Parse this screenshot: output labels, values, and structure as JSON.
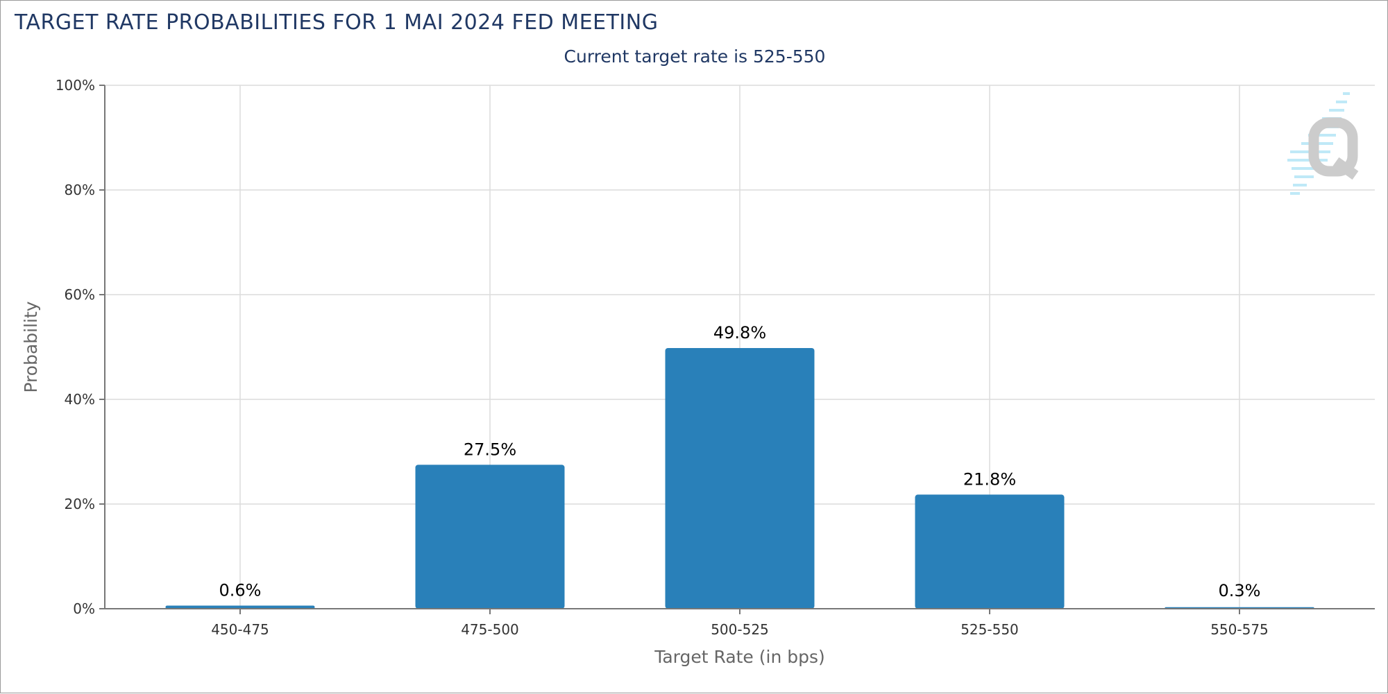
{
  "chart_data": {
    "type": "bar",
    "title": "TARGET RATE PROBABILITIES FOR 1 MAI 2024 FED MEETING",
    "subtitle": "Current target rate is 525-550",
    "xlabel": "Target Rate (in bps)",
    "ylabel": "Probability",
    "categories": [
      "450-475",
      "475-500",
      "500-525",
      "525-550",
      "550-575"
    ],
    "values": [
      0.6,
      27.5,
      49.8,
      21.8,
      0.3
    ],
    "data_labels": [
      "0.6%",
      "27.5%",
      "49.8%",
      "21.8%",
      "0.3%"
    ],
    "yticks": [
      0,
      20,
      40,
      60,
      80,
      100
    ],
    "ytick_labels": [
      "0%",
      "20%",
      "40%",
      "60%",
      "80%",
      "100%"
    ],
    "ylim": [
      0,
      100
    ],
    "grid": true,
    "legend": "none",
    "bar_color": "#2980b9",
    "watermark_icon": "q-logo-icon"
  }
}
